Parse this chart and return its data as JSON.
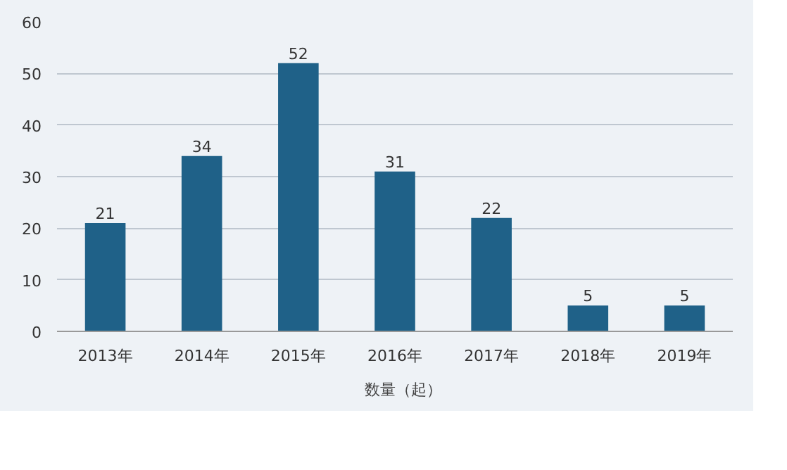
{
  "chart_data": {
    "type": "bar",
    "categories": [
      "2013年",
      "2014年",
      "2015年",
      "2016年",
      "2017年",
      "2018年",
      "2019年"
    ],
    "series": [
      {
        "name": "数量（起）",
        "color": "#1f6188",
        "values": [
          21,
          34,
          52,
          31,
          22,
          5,
          5
        ]
      }
    ],
    "ylim": [
      0,
      60
    ],
    "yticks": [
      0,
      10,
      20,
      30,
      40,
      50,
      60
    ],
    "grid": "y",
    "legend": "bottom",
    "data_labels": true
  }
}
